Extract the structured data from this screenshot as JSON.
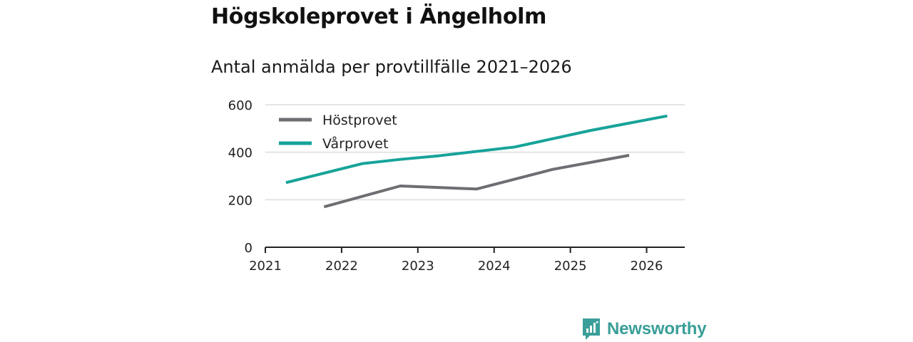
{
  "title": "Högskoleprovet i Ängelholm",
  "subtitle": "Antal anmälda per provtillfälle 2021–2026",
  "brand": {
    "name": "Newsworthy"
  },
  "colors": {
    "host": "#6e6d72",
    "var": "#16a39a",
    "grid": "#dcdcdc",
    "axis": "#222222",
    "brand": "#3a9e98"
  },
  "chart_data": {
    "type": "line",
    "title": "Högskoleprovet i Ängelholm",
    "subtitle": "Antal anmälda per provtillfälle 2021–2026",
    "xlabel": "",
    "ylabel": "",
    "xlim": [
      2021,
      2026.5
    ],
    "ylim": [
      0,
      600
    ],
    "x_ticks": [
      "2021",
      "2022",
      "2023",
      "2024",
      "2025",
      "2026"
    ],
    "y_ticks": [
      "0",
      "200",
      "400",
      "600"
    ],
    "grid": true,
    "legend_position": "top-left",
    "series": [
      {
        "name": "Höstprovet",
        "color": "#6e6d72",
        "x": [
          2021.77,
          2022.77,
          2023.77,
          2024.77,
          2025.77
        ],
        "y": [
          170,
          258,
          245,
          328,
          387
        ]
      },
      {
        "name": "Vårprovet",
        "color": "#16a39a",
        "x": [
          2021.27,
          2022.27,
          2022.77,
          2023.27,
          2024.27,
          2025.27,
          2026.27
        ],
        "y": [
          272,
          352,
          370,
          385,
          422,
          492,
          553
        ]
      }
    ]
  }
}
